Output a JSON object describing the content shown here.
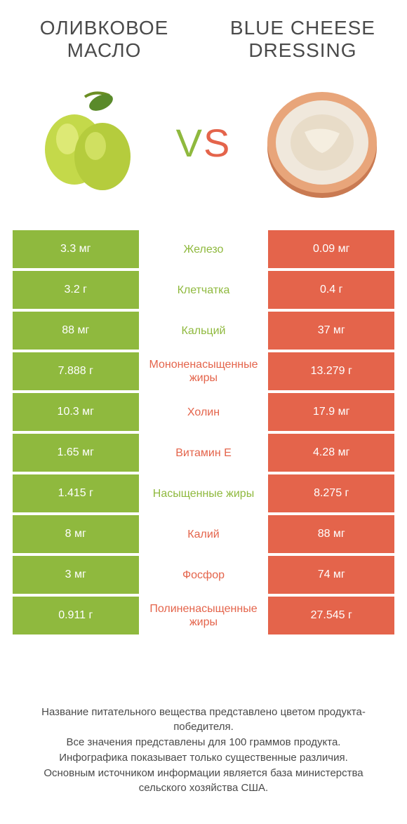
{
  "colors": {
    "left": "#8fb93e",
    "right": "#e4644b",
    "text": "#4a4a4a",
    "white": "#ffffff",
    "background": "#ffffff"
  },
  "header": {
    "left_title": "Оливковое\nмасло",
    "right_title": "Blue cheese dressing",
    "vs_v": "V",
    "vs_s": "S"
  },
  "images": {
    "left_alt": "olives",
    "right_alt": "blue cheese dressing bowl"
  },
  "typography": {
    "title_fontsize": 28,
    "vs_fontsize": 56,
    "cell_fontsize": 16,
    "footer_fontsize": 15
  },
  "rows": [
    {
      "left": "3.3 мг",
      "label": "Железо",
      "right": "0.09 мг",
      "winner": "left"
    },
    {
      "left": "3.2 г",
      "label": "Клетчатка",
      "right": "0.4 г",
      "winner": "left"
    },
    {
      "left": "88 мг",
      "label": "Кальций",
      "right": "37 мг",
      "winner": "left"
    },
    {
      "left": "7.888 г",
      "label": "Мононенасыщенные жиры",
      "right": "13.279 г",
      "winner": "right"
    },
    {
      "left": "10.3 мг",
      "label": "Холин",
      "right": "17.9 мг",
      "winner": "right"
    },
    {
      "left": "1.65 мг",
      "label": "Витамин E",
      "right": "4.28 мг",
      "winner": "right"
    },
    {
      "left": "1.415 г",
      "label": "Насыщенные жиры",
      "right": "8.275 г",
      "winner": "left"
    },
    {
      "left": "8 мг",
      "label": "Калий",
      "right": "88 мг",
      "winner": "right"
    },
    {
      "left": "3 мг",
      "label": "Фосфор",
      "right": "74 мг",
      "winner": "right"
    },
    {
      "left": "0.911 г",
      "label": "Полиненасыщенные жиры",
      "right": "27.545 г",
      "winner": "right"
    }
  ],
  "footer": {
    "line1": "Название питательного вещества представлено цветом продукта-победителя.",
    "line2": "Все значения представлены для 100 граммов продукта.",
    "line3": "Инфографика показывает только существенные различия.",
    "line4": "Основным источником информации является база министерства сельского хозяйства США."
  }
}
